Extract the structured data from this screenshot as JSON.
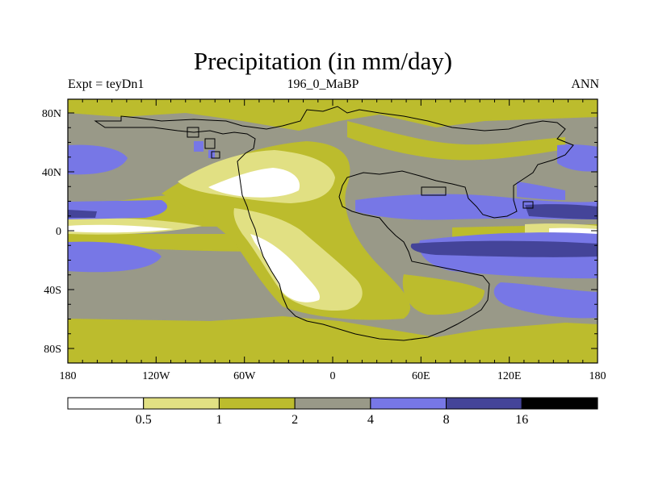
{
  "title": "Precipitation (in mm/day)",
  "subtitle_left": "Expt = teyDn1",
  "subtitle_center": "196_0_MaBP",
  "subtitle_right": "ANN",
  "map": {
    "lat_labels": [
      "80N",
      "40N",
      "0",
      "40S",
      "80S"
    ],
    "lon_labels": [
      "180",
      "120W",
      "60W",
      "0",
      "60E",
      "120E",
      "180"
    ]
  },
  "colorbar": {
    "units": "mm/day",
    "boundaries": [
      "0.5",
      "1",
      "2",
      "4",
      "8",
      "16"
    ],
    "colors": [
      "#ffffff",
      "#e1e083",
      "#bcbc2d",
      "#999988",
      "#7777e6",
      "#444499",
      "#000000"
    ]
  }
}
